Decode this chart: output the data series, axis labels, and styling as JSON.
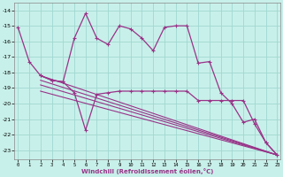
{
  "background_color": "#c8f0ea",
  "grid_color": "#a0d8d0",
  "line_color": "#993388",
  "series": [
    {
      "x": [
        0,
        1,
        2,
        3,
        4,
        5,
        6,
        7,
        8,
        9,
        10,
        11,
        12,
        13,
        14,
        15,
        16,
        17,
        18,
        19,
        20,
        21,
        22,
        23
      ],
      "y": [
        -15.1,
        -17.3,
        -18.2,
        -18.5,
        -18.6,
        -15.8,
        -14.2,
        -15.8,
        -16.2,
        -15.0,
        -15.2,
        -15.8,
        -16.6,
        -15.1,
        -15.0,
        -15.0,
        -17.4,
        -17.3,
        -19.3,
        -20.0,
        -21.2,
        -21.0,
        -22.5,
        -23.3
      ]
    },
    {
      "x": [
        2,
        3,
        4,
        5,
        6,
        7,
        8,
        9,
        10,
        11,
        12,
        13,
        14,
        15,
        16,
        17,
        18,
        19,
        20,
        21,
        22,
        23
      ],
      "y": [
        -18.2,
        -18.5,
        -18.6,
        -19.3,
        -21.7,
        -19.4,
        -19.3,
        -19.2,
        -19.2,
        -19.2,
        -19.2,
        -19.2,
        -19.2,
        -19.2,
        -19.8,
        -19.8,
        -19.8,
        -19.8,
        -19.8,
        -21.3,
        -22.5,
        -23.3
      ]
    },
    {
      "x": [
        2,
        23
      ],
      "y": [
        -18.2,
        -23.3
      ]
    },
    {
      "x": [
        2,
        23
      ],
      "y": [
        -18.5,
        -23.3
      ]
    },
    {
      "x": [
        2,
        23
      ],
      "y": [
        -18.8,
        -23.3
      ]
    },
    {
      "x": [
        2,
        23
      ],
      "y": [
        -19.2,
        -23.3
      ]
    }
  ],
  "xlabel": "Windchill (Refroidissement éolien,°C)",
  "xlim": [
    -0.3,
    23.3
  ],
  "ylim": [
    -23.6,
    -13.5
  ],
  "yticks": [
    -23,
    -22,
    -21,
    -20,
    -19,
    -18,
    -17,
    -16,
    -15,
    -14
  ],
  "xticks": [
    0,
    1,
    2,
    3,
    4,
    5,
    6,
    7,
    8,
    9,
    10,
    11,
    12,
    13,
    14,
    15,
    16,
    17,
    18,
    19,
    20,
    21,
    22,
    23
  ]
}
